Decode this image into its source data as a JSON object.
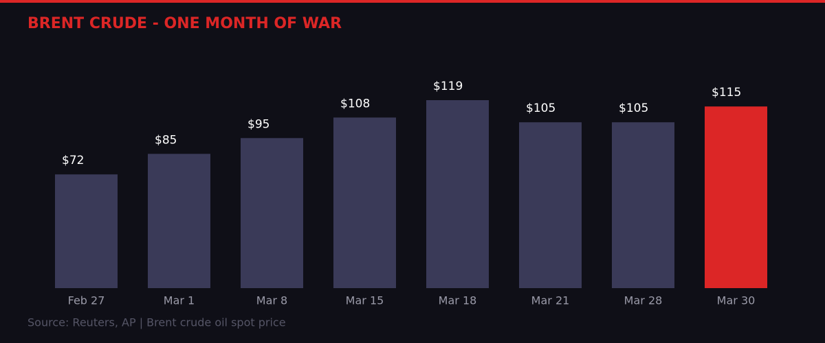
{
  "chart_data": {
    "type": "bar",
    "title": "BRENT CRUDE - ONE MONTH OF WAR",
    "categories": [
      "Feb 27",
      "Mar 1",
      "Mar 8",
      "Mar 15",
      "Mar 18",
      "Mar 21",
      "Mar 28",
      "Mar 30"
    ],
    "values": [
      72,
      85,
      95,
      108,
      119,
      105,
      105,
      115
    ],
    "value_labels": [
      "$72",
      "$85",
      "$95",
      "$108",
      "$119",
      "$105",
      "$105",
      "$115"
    ],
    "colors": [
      "#3a3a58",
      "#3a3a58",
      "#3a3a58",
      "#3a3a58",
      "#3a3a58",
      "#3a3a58",
      "#3a3a58",
      "#dc2626"
    ],
    "source": "Source: Reuters, AP | Brent crude oil spot price"
  }
}
